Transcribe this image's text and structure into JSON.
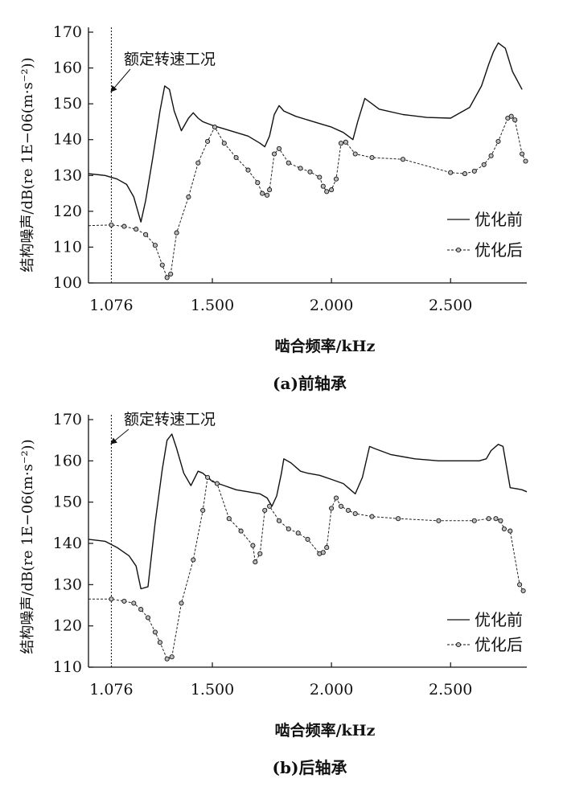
{
  "chart_data": [
    {
      "type": "line",
      "caption": "(a)前轴承",
      "xlabel": "啮合频率/kHz",
      "ylabel": "结构噪声/dB(re 1E−06(m·s⁻²))",
      "xlim": [
        0.98,
        2.82
      ],
      "ylim": [
        100,
        170
      ],
      "xticks": [
        1.5,
        2.0,
        2.5
      ],
      "xtick_labels": [
        "1.500",
        "2.000",
        "2.500"
      ],
      "extra_x_label": "1.076",
      "yticks": [
        100,
        110,
        120,
        130,
        140,
        150,
        160,
        170
      ],
      "vline_x": 1.076,
      "annotation": "额定转速工况",
      "legend": {
        "position": "right",
        "entries": [
          "优化前",
          "优化后"
        ]
      },
      "series": [
        {
          "name": "优化前",
          "style": "solid",
          "x": [
            0.98,
            1.05,
            1.1,
            1.14,
            1.17,
            1.2,
            1.22,
            1.25,
            1.28,
            1.3,
            1.32,
            1.34,
            1.37,
            1.4,
            1.42,
            1.44,
            1.46,
            1.5,
            1.55,
            1.6,
            1.65,
            1.7,
            1.72,
            1.74,
            1.76,
            1.78,
            1.8,
            1.85,
            1.9,
            1.95,
            2.0,
            2.05,
            2.09,
            2.11,
            2.14,
            2.17,
            2.2,
            2.3,
            2.4,
            2.5,
            2.58,
            2.63,
            2.66,
            2.68,
            2.7,
            2.73,
            2.76,
            2.8
          ],
          "y": [
            130.5,
            130,
            129,
            127.5,
            124,
            117,
            123,
            135,
            148,
            155,
            154,
            148,
            142.5,
            146,
            147.5,
            146,
            145,
            144,
            143,
            142,
            141,
            139,
            138,
            141,
            147,
            149.5,
            148,
            146.5,
            145.5,
            144.5,
            143.5,
            142,
            140,
            145,
            151.5,
            150,
            148.5,
            147,
            146.2,
            146,
            149,
            155,
            161,
            164.5,
            167,
            165.5,
            159,
            154
          ]
        },
        {
          "name": "优化后",
          "style": "dashed-markers",
          "x": [
            0.98,
            1.076,
            1.13,
            1.18,
            1.22,
            1.26,
            1.29,
            1.31,
            1.325,
            1.35,
            1.4,
            1.44,
            1.48,
            1.51,
            1.55,
            1.6,
            1.65,
            1.69,
            1.71,
            1.73,
            1.74,
            1.76,
            1.78,
            1.82,
            1.87,
            1.91,
            1.95,
            1.965,
            1.98,
            2.0,
            2.02,
            2.04,
            2.06,
            2.1,
            2.17,
            2.3,
            2.5,
            2.56,
            2.6,
            2.64,
            2.67,
            2.7,
            2.74,
            2.755,
            2.77,
            2.8,
            2.815
          ],
          "y": [
            116,
            116.2,
            115.8,
            115,
            113.5,
            110.5,
            105,
            101.5,
            102.5,
            114,
            124,
            133.5,
            139.5,
            143.5,
            139,
            135,
            131.5,
            128,
            125,
            124.5,
            126,
            136,
            137.5,
            133.5,
            132,
            131,
            129.5,
            127,
            125.5,
            126,
            129,
            139,
            139.3,
            136,
            135,
            134.5,
            130.8,
            130.5,
            131.2,
            133,
            135.5,
            139.5,
            146,
            146.5,
            145.5,
            136,
            134
          ]
        }
      ]
    },
    {
      "type": "line",
      "caption": "(b)后轴承",
      "xlabel": "啮合频率/kHz",
      "ylabel": "结构噪声/dB(re 1E−06(m·s⁻²))",
      "xlim": [
        0.98,
        2.82
      ],
      "ylim": [
        110,
        170
      ],
      "xticks": [
        1.5,
        2.0,
        2.5
      ],
      "xtick_labels": [
        "1.500",
        "2.000",
        "2.500"
      ],
      "extra_x_label": "1.076",
      "yticks": [
        110,
        120,
        130,
        140,
        150,
        160,
        170
      ],
      "vline_x": 1.076,
      "annotation": "额定转速工况",
      "legend": {
        "position": "right",
        "entries": [
          "优化前",
          "优化后"
        ]
      },
      "series": [
        {
          "name": "优化前",
          "style": "solid",
          "x": [
            0.98,
            1.05,
            1.1,
            1.15,
            1.18,
            1.2,
            1.23,
            1.26,
            1.29,
            1.31,
            1.33,
            1.35,
            1.38,
            1.41,
            1.44,
            1.46,
            1.5,
            1.55,
            1.6,
            1.65,
            1.7,
            1.73,
            1.75,
            1.77,
            1.79,
            1.8,
            1.83,
            1.87,
            1.9,
            1.95,
            2.0,
            2.05,
            2.08,
            2.1,
            2.13,
            2.16,
            2.18,
            2.25,
            2.35,
            2.45,
            2.55,
            2.62,
            2.65,
            2.67,
            2.7,
            2.72,
            2.75,
            2.78,
            2.8,
            2.82
          ],
          "y": [
            141,
            140.5,
            139,
            137,
            134.5,
            129,
            129.5,
            145,
            158,
            165,
            166.5,
            163,
            157,
            154,
            157.5,
            157,
            155,
            154,
            153,
            152.5,
            152,
            151,
            149,
            151.5,
            157,
            160.5,
            159.5,
            157.5,
            157,
            156.5,
            155.5,
            154.5,
            153,
            152,
            156,
            163.5,
            163,
            161.5,
            160.5,
            160,
            160,
            160,
            160.5,
            162.5,
            164,
            163.5,
            153.5,
            153.2,
            153,
            152.5
          ]
        },
        {
          "name": "优化后",
          "style": "dashed-markers",
          "x": [
            0.98,
            1.076,
            1.13,
            1.17,
            1.2,
            1.23,
            1.26,
            1.28,
            1.31,
            1.33,
            1.37,
            1.42,
            1.46,
            1.48,
            1.52,
            1.57,
            1.62,
            1.67,
            1.68,
            1.7,
            1.72,
            1.74,
            1.78,
            1.82,
            1.86,
            1.9,
            1.95,
            1.965,
            1.98,
            2.0,
            2.02,
            2.04,
            2.07,
            2.1,
            2.17,
            2.28,
            2.45,
            2.6,
            2.66,
            2.69,
            2.71,
            2.725,
            2.75,
            2.79,
            2.805
          ],
          "y": [
            126.5,
            126.5,
            126,
            125.5,
            124,
            122,
            118.5,
            116,
            112,
            112.5,
            125.5,
            136,
            148,
            156,
            154.5,
            146,
            143,
            139.5,
            135.5,
            137.5,
            148,
            149,
            145.5,
            143.5,
            142.5,
            141,
            137.5,
            137.8,
            139,
            148.5,
            151,
            149,
            148,
            147.2,
            146.5,
            146,
            145.5,
            145.5,
            146,
            146,
            145.5,
            143.5,
            143,
            130,
            128.5
          ]
        }
      ]
    }
  ]
}
